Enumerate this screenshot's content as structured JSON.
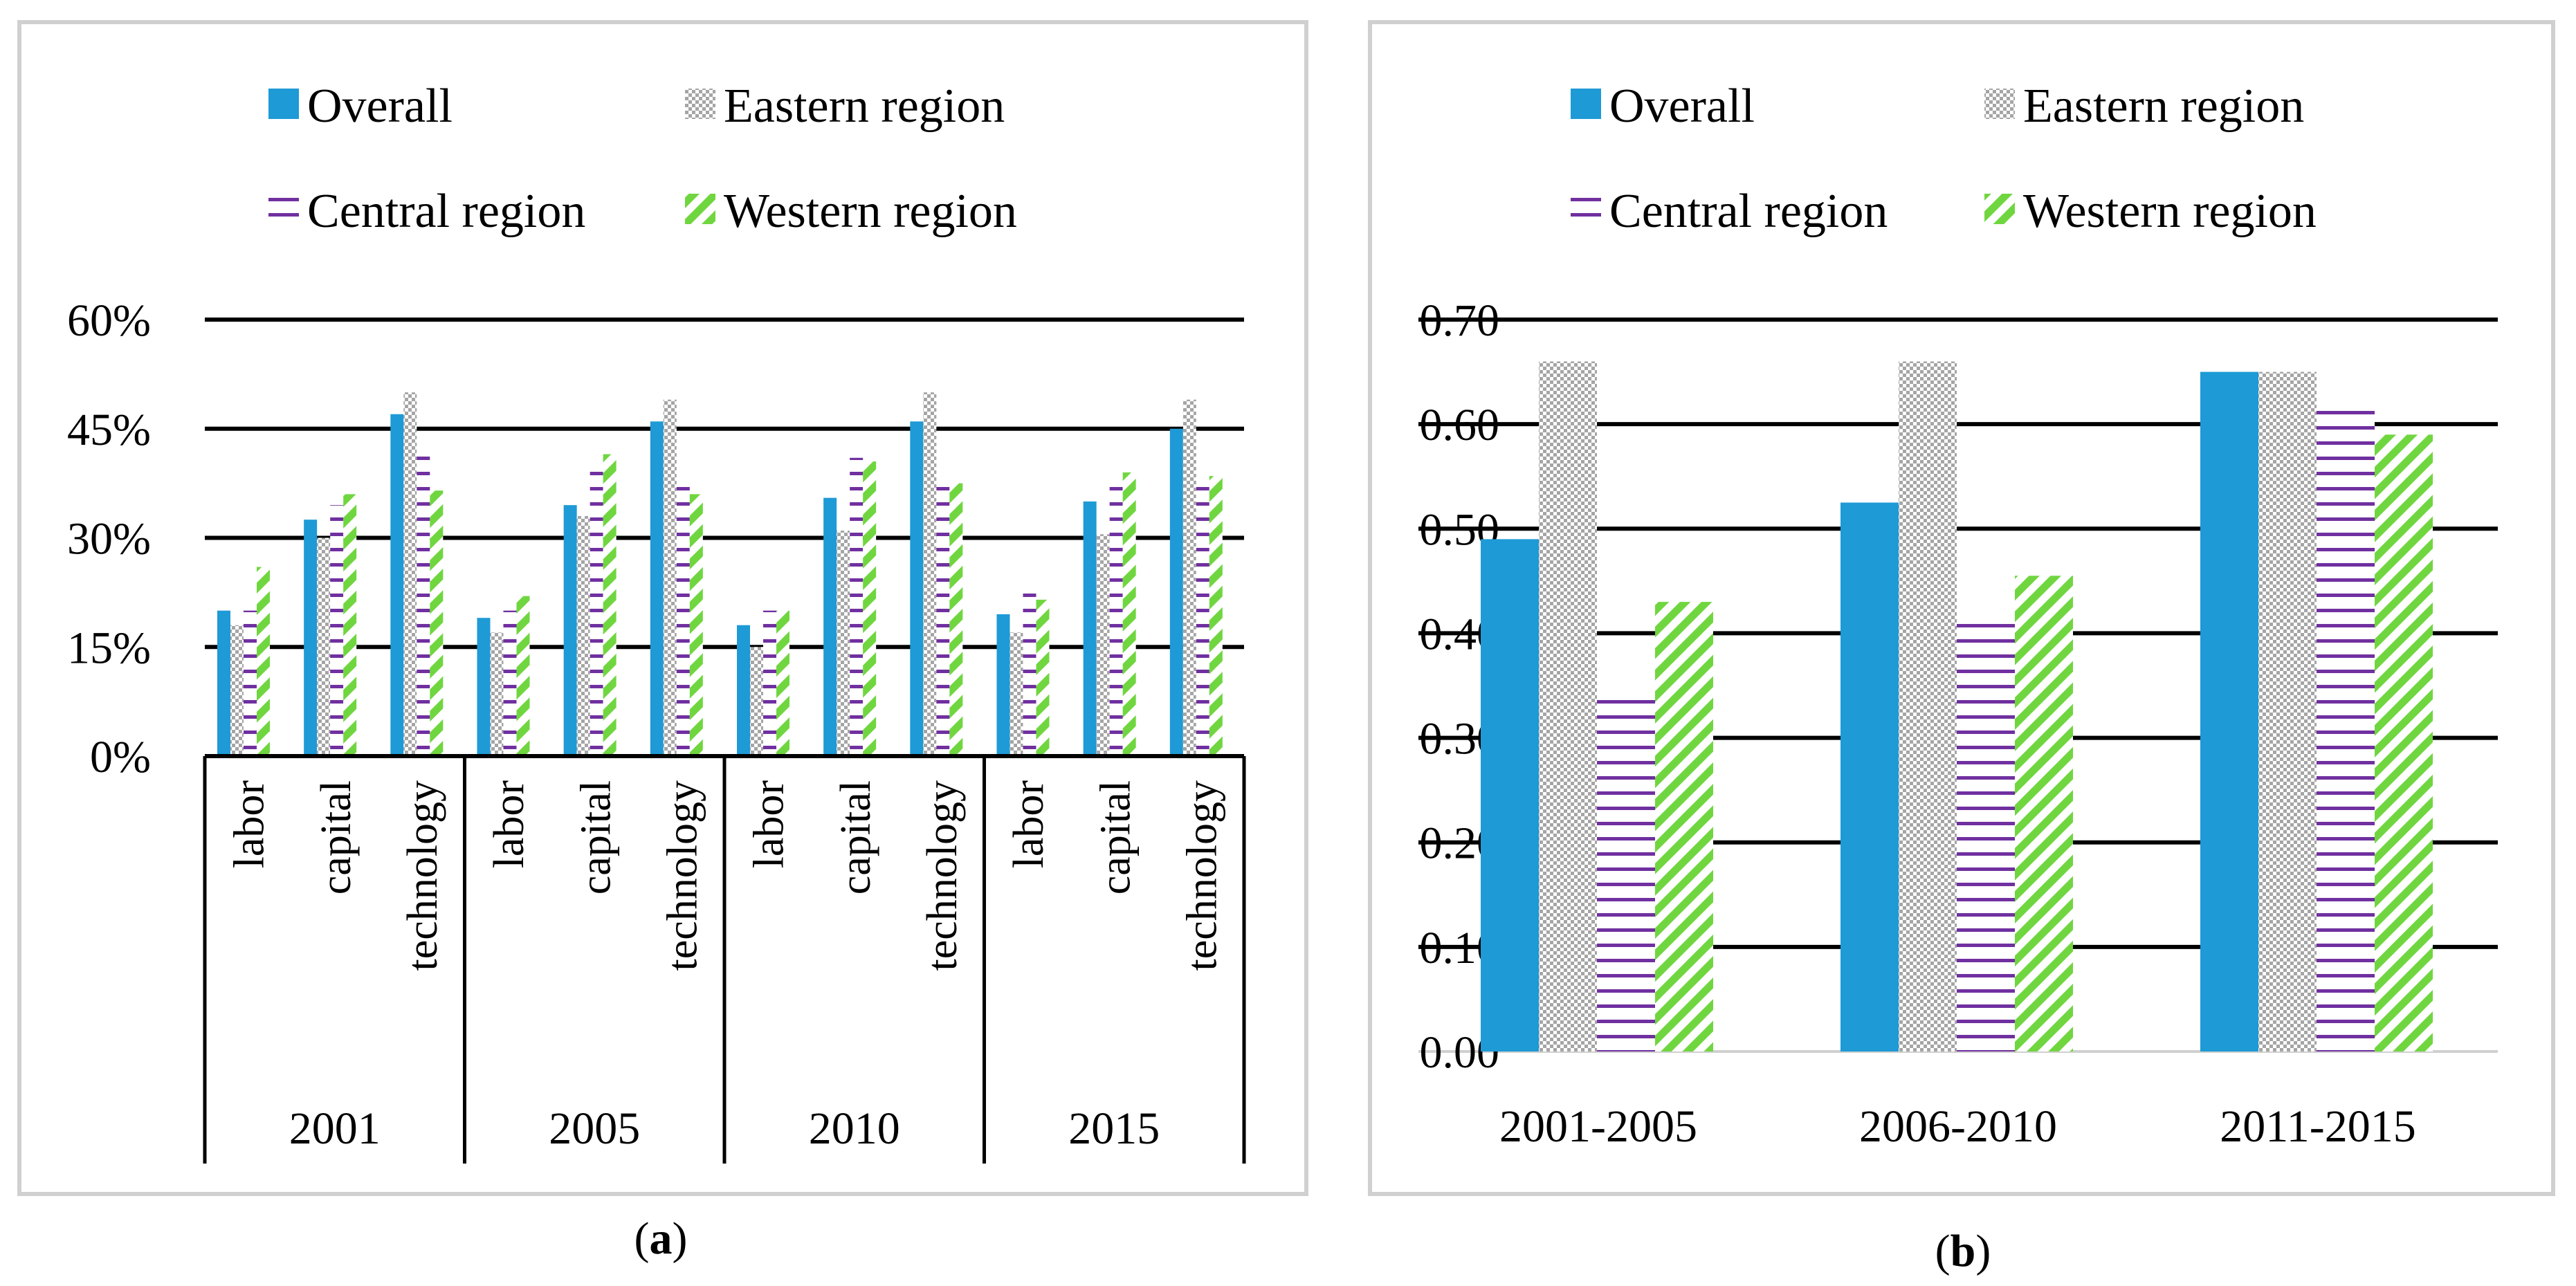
{
  "chart_data": [
    {
      "type": "bar",
      "panel_label": "a",
      "legend": [
        {
          "name": "Overall",
          "pattern": "solid"
        },
        {
          "name": "Eastern region",
          "pattern": "dots"
        },
        {
          "name": "Central region",
          "pattern": "hlines"
        },
        {
          "name": "Western region",
          "pattern": "diag"
        }
      ],
      "y_ticks": [
        "0%",
        "15%",
        "30%",
        "45%",
        "60%"
      ],
      "ylim": [
        0,
        60
      ],
      "groups": [
        "2001",
        "2005",
        "2010",
        "2015"
      ],
      "categories": [
        "labor",
        "capital",
        "technology"
      ],
      "series": [
        {
          "name": "Overall",
          "values": [
            [
              20,
              32.5,
              47
            ],
            [
              19,
              34.5,
              46
            ],
            [
              18,
              35.5,
              46
            ],
            [
              19.5,
              35,
              45
            ]
          ]
        },
        {
          "name": "Eastern region",
          "values": [
            [
              18,
              30,
              50
            ],
            [
              17,
              33,
              49
            ],
            [
              15,
              31,
              50
            ],
            [
              17,
              30.5,
              49
            ]
          ]
        },
        {
          "name": "Central region",
          "values": [
            [
              20,
              34.5,
              42
            ],
            [
              20,
              40.5,
              37
            ],
            [
              20,
              41,
              37
            ],
            [
              22.5,
              37,
              37
            ]
          ]
        },
        {
          "name": "Western region",
          "values": [
            [
              26,
              36,
              36.5
            ],
            [
              22,
              41.5,
              36
            ],
            [
              20,
              40.5,
              37.5
            ],
            [
              21.5,
              39,
              38.5
            ]
          ]
        }
      ]
    },
    {
      "type": "bar",
      "panel_label": "b",
      "legend": [
        {
          "name": "Overall",
          "pattern": "solid"
        },
        {
          "name": "Eastern region",
          "pattern": "dots"
        },
        {
          "name": "Central region",
          "pattern": "hlines"
        },
        {
          "name": "Western region",
          "pattern": "diag"
        }
      ],
      "y_ticks": [
        "0.00",
        "0.10",
        "0.20",
        "0.30",
        "0.40",
        "0.50",
        "0.60",
        "0.70"
      ],
      "ylim": [
        0,
        0.7
      ],
      "categories": [
        "2001-2005",
        "2006-2010",
        "2011-2015"
      ],
      "series": [
        {
          "name": "Overall",
          "values": [
            0.49,
            0.525,
            0.65
          ]
        },
        {
          "name": "Eastern region",
          "values": [
            0.66,
            0.66,
            0.65
          ]
        },
        {
          "name": "Central region",
          "values": [
            0.34,
            0.42,
            0.62
          ]
        },
        {
          "name": "Western region",
          "values": [
            0.43,
            0.455,
            0.59
          ]
        }
      ]
    }
  ],
  "colors": {
    "overall": "#1e9ad6",
    "eastern": "#a5a5a5",
    "central": "#7030a0",
    "western": "#70d640",
    "panel_border": "#d0d0d0",
    "axis": "#000000"
  }
}
